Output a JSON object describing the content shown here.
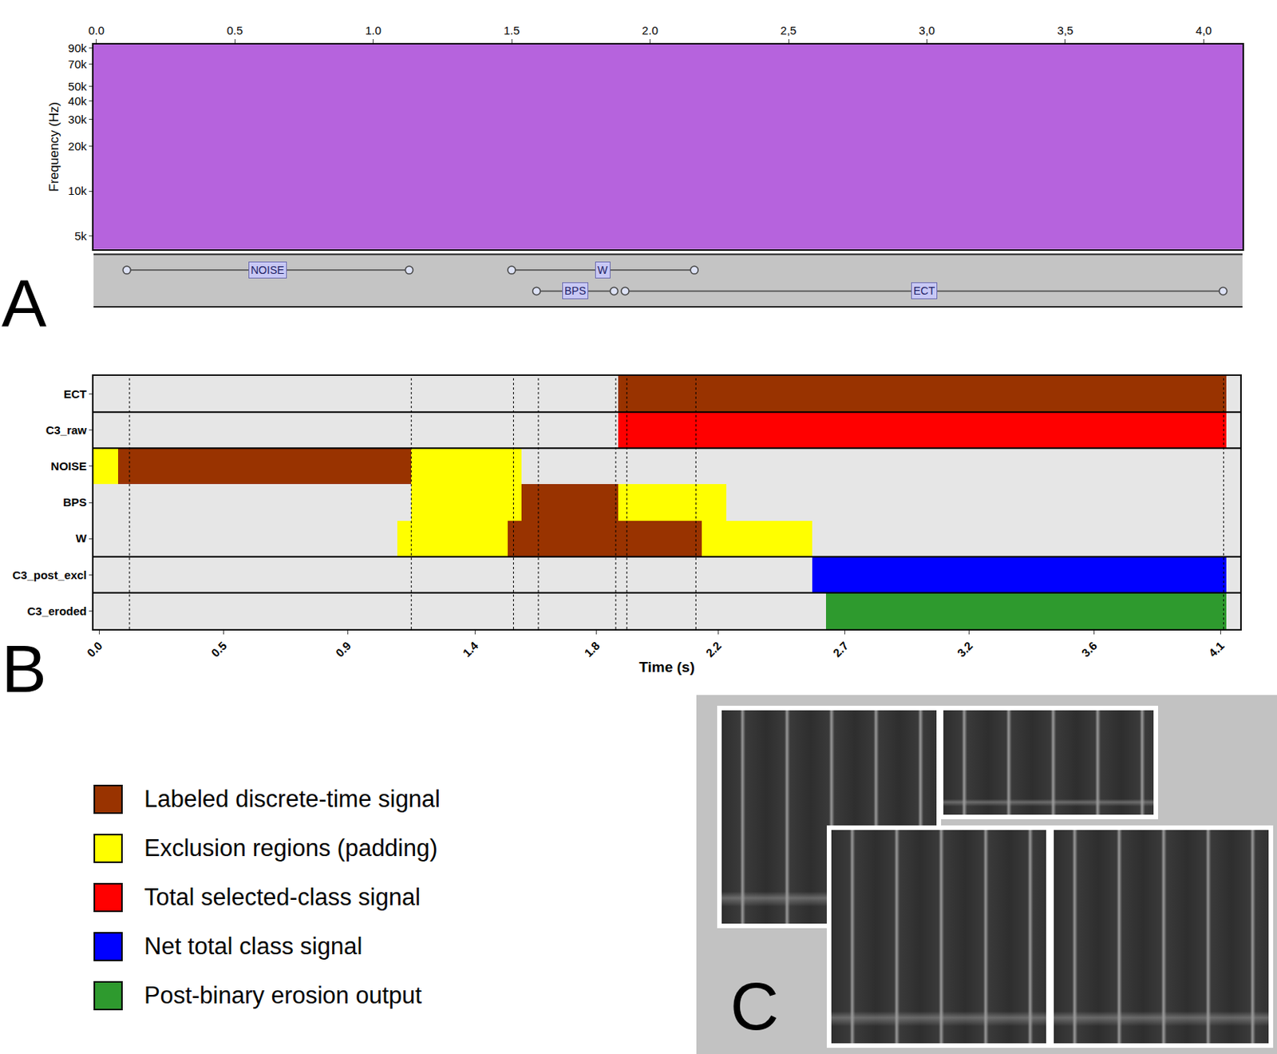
{
  "chart_data": [
    {
      "panel": "A",
      "type": "spectrogram",
      "xlim": [
        -0.01,
        4.14
      ],
      "xticks": [
        {
          "value": 0,
          "label": "0.0"
        },
        {
          "value": 0.5,
          "label": "0.5"
        },
        {
          "value": 1,
          "label": "1.0"
        },
        {
          "value": 1.5,
          "label": "1.5"
        },
        {
          "value": 2,
          "label": "2.0"
        },
        {
          "value": 2.5,
          "label": "2,5"
        },
        {
          "value": 3,
          "label": "3,0"
        },
        {
          "value": 3.5,
          "label": "3,5"
        },
        {
          "value": 4,
          "label": "4,0"
        }
      ],
      "y_label": "Frequency (Hz)",
      "log": "y",
      "ylim": [
        4100,
        95000
      ],
      "yticks": [
        {
          "value": 5000,
          "label": "5k"
        },
        {
          "value": 10000,
          "label": "10k"
        },
        {
          "value": 20000,
          "label": "20k"
        },
        {
          "value": 30000,
          "label": "30k"
        },
        {
          "value": 40000,
          "label": "40k"
        },
        {
          "value": 50000,
          "label": "50k"
        },
        {
          "value": 70000,
          "label": "70k"
        },
        {
          "value": 90000,
          "label": "90k"
        }
      ],
      "annotations": [
        {
          "label": "NOISE",
          "start": 0.11,
          "end": 1.13
        },
        {
          "label": "W",
          "start": 1.5,
          "end": 2.16
        },
        {
          "label": "BPS",
          "start": 1.59,
          "end": 1.87
        },
        {
          "label": "ECT",
          "start": 1.91,
          "end": 4.07
        }
      ]
    },
    {
      "panel": "B",
      "type": "timeline",
      "orientation": "horizontal",
      "x_label": "Time (s)",
      "xlim": [
        -0.02,
        4.13
      ],
      "xticks": [
        {
          "value": 0,
          "label": "0.0"
        },
        {
          "value": 0.45,
          "label": "0.5"
        },
        {
          "value": 0.9,
          "label": "0.9"
        },
        {
          "value": 1.36,
          "label": "1.4"
        },
        {
          "value": 1.8,
          "label": "1.8"
        },
        {
          "value": 2.24,
          "label": "2.2"
        },
        {
          "value": 2.7,
          "label": "2.7"
        },
        {
          "value": 3.15,
          "label": "3.2"
        },
        {
          "value": 3.6,
          "label": "3.6"
        },
        {
          "value": 4.06,
          "label": "4.1"
        }
      ],
      "categories": [
        "ECT",
        "C3_raw",
        "NOISE",
        "BPS",
        "W",
        "C3_post_excl",
        "C3_eroded"
      ],
      "legend": "below",
      "series": [
        {
          "name": "Labeled discrete-time signal",
          "color": "#993300",
          "segments": [
            {
              "category": "ECT",
              "start": 1.88,
              "end": 4.08
            },
            {
              "category": "NOISE",
              "start": 0.07,
              "end": 1.13
            },
            {
              "category": "BPS",
              "start": 1.53,
              "end": 1.88
            },
            {
              "category": "W",
              "start": 1.48,
              "end": 2.18
            }
          ]
        },
        {
          "name": "Exclusion regions (padding)",
          "color": "#ffff00",
          "segments": [
            {
              "category": "NOISE",
              "start": -0.02,
              "end": 0.07
            },
            {
              "category": "NOISE",
              "start": 1.13,
              "end": 1.53
            },
            {
              "category": "BPS",
              "start": 1.13,
              "end": 1.53
            },
            {
              "category": "BPS",
              "start": 1.88,
              "end": 2.27
            },
            {
              "category": "W",
              "start": 1.08,
              "end": 1.48
            },
            {
              "category": "W",
              "start": 2.18,
              "end": 2.58
            }
          ]
        },
        {
          "name": "Total selected-class signal",
          "color": "#ff0000",
          "segments": [
            {
              "category": "C3_raw",
              "start": 1.88,
              "end": 4.08
            }
          ]
        },
        {
          "name": "Net total class signal",
          "color": "#0000ff",
          "segments": [
            {
              "category": "C3_post_excl",
              "start": 2.58,
              "end": 4.08
            }
          ]
        },
        {
          "name": "Post-binary erosion output",
          "color": "#2e9a2e",
          "segments": [
            {
              "category": "C3_eroded",
              "start": 2.63,
              "end": 4.08
            }
          ]
        }
      ]
    },
    {
      "panel": "C",
      "type": "image"
    }
  ]
}
